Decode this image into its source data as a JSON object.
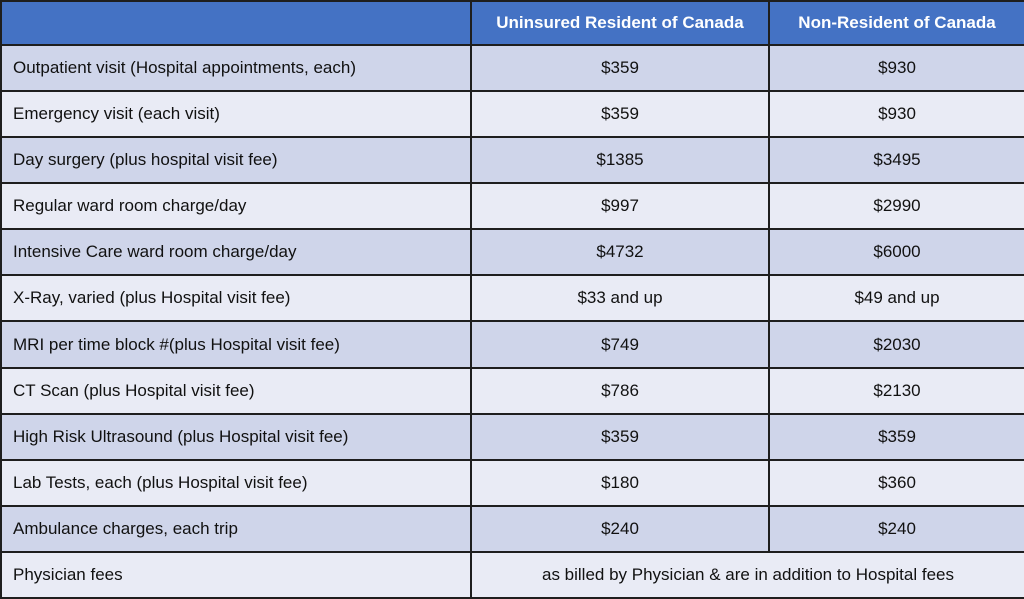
{
  "table": {
    "columns": [
      "Uninsured Resident of Canada",
      "Non-Resident of Canada"
    ],
    "rows": [
      [
        "Outpatient visit (Hospital appointments, each)",
        "$359",
        "$930"
      ],
      [
        "Emergency visit (each visit)",
        "$359",
        "$930"
      ],
      [
        "Day surgery (plus hospital visit fee)",
        "$1385",
        "$3495"
      ],
      [
        "Regular ward room charge/day",
        "$997",
        "$2990"
      ],
      [
        "Intensive Care ward room charge/day",
        "$4732",
        "$6000"
      ],
      [
        "X-Ray, varied (plus Hospital visit fee)",
        "$33 and up",
        "$49 and up"
      ],
      [
        "MRI per time block #(plus Hospital visit fee)",
        "$749",
        "$2030"
      ],
      [
        "CT Scan (plus Hospital visit fee)",
        "$786",
        "$2130"
      ],
      [
        "High Risk Ultrasound (plus Hospital visit fee)",
        "$359",
        "$359"
      ],
      [
        "Lab Tests, each (plus Hospital visit fee)",
        "$180",
        "$360"
      ],
      [
        "Ambulance charges, each trip",
        "$240",
        "$240"
      ],
      [
        "Physician fees",
        "as billed by Physician & are in addition to Hospital fees"
      ]
    ]
  }
}
